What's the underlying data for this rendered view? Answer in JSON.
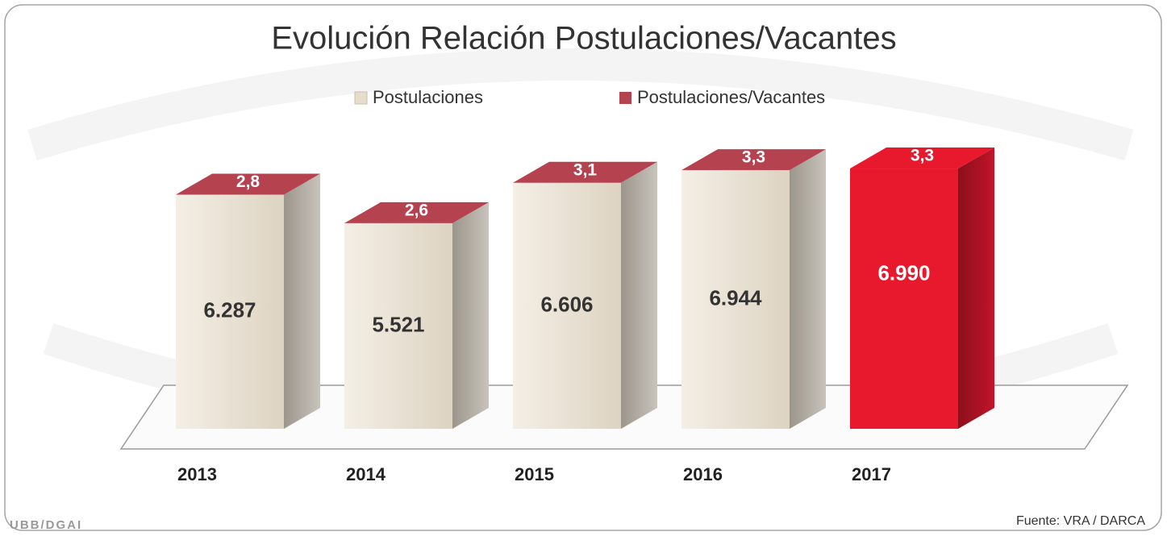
{
  "chart_data": {
    "type": "bar3d",
    "title": "Evolución Relación Postulaciones/Vacantes",
    "categories": [
      "2013",
      "2014",
      "2015",
      "2016",
      "2017"
    ],
    "series": [
      {
        "name": "Postulaciones",
        "color": "#e6ddcd",
        "colors": [
          "#e6ddcd",
          "#e6ddcd",
          "#e6ddcd",
          "#e6ddcd",
          "#e8192c"
        ],
        "values": [
          6287,
          5521,
          6606,
          6944,
          6990
        ],
        "value_labels": [
          "6.287",
          "5.521",
          "6.606",
          "6.944",
          "6.990"
        ]
      },
      {
        "name": "Postulaciones/Vacantes",
        "color": "#b5424f",
        "values": [
          2.8,
          2.6,
          3.1,
          3.3,
          3.3
        ],
        "value_labels": [
          "2,8",
          "2,6",
          "3,1",
          "3,3",
          "3,3"
        ]
      }
    ],
    "source": "Fuente: VRA / DARCA",
    "logo": "UBB/DGAI"
  }
}
